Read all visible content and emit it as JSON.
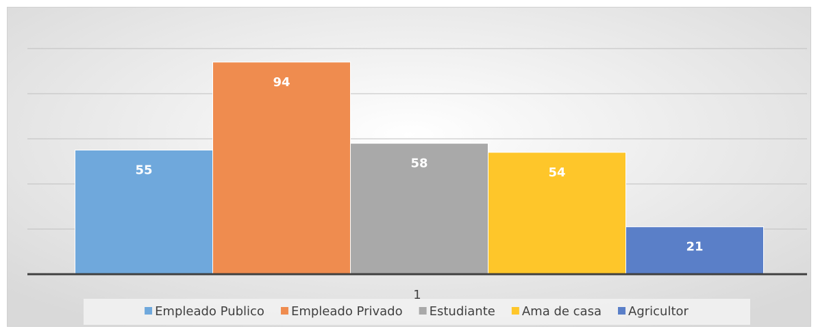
{
  "chart_data": {
    "type": "bar",
    "categories": [
      "1"
    ],
    "series": [
      {
        "name": "Empleado Publico",
        "color": "#6fa8dc",
        "values": [
          55
        ]
      },
      {
        "name": "Empleado Privado",
        "color": "#ef8c4f",
        "values": [
          94
        ]
      },
      {
        "name": "Estudiante",
        "color": "#a9a9a9",
        "values": [
          58
        ]
      },
      {
        "name": "Ama de casa",
        "color": "#fec62a",
        "values": [
          54
        ]
      },
      {
        "name": "Agricultor",
        "color": "#5a7fc8",
        "values": [
          21
        ]
      }
    ],
    "ylim": [
      0,
      100
    ],
    "yticks": [
      0,
      20,
      40,
      60,
      80,
      100
    ],
    "grid": true,
    "legend": "bottom"
  }
}
